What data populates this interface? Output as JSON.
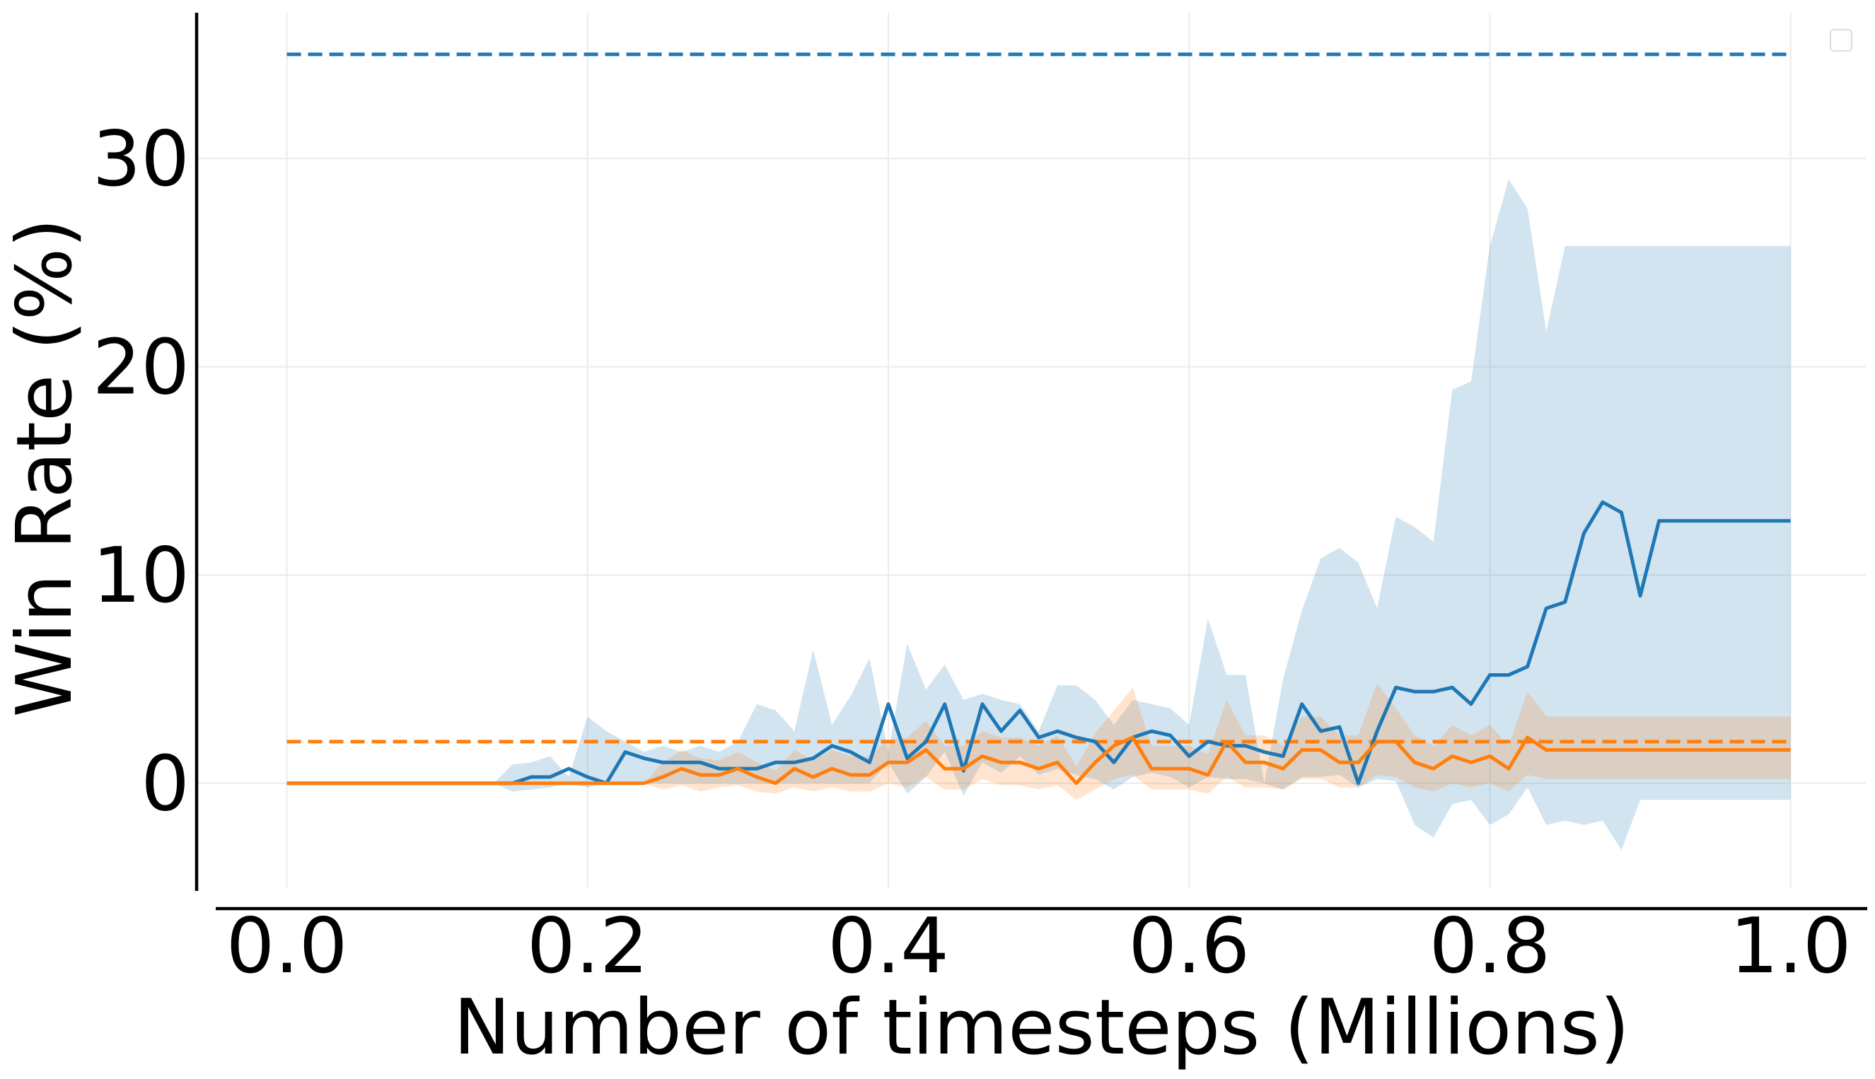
{
  "chart_data": {
    "type": "line",
    "title": "",
    "xlabel": "Number of timesteps (Millions)",
    "ylabel": "Win Rate (%)",
    "xlim": [
      -0.06,
      1.05
    ],
    "ylim": [
      -5,
      37
    ],
    "xticks": [
      0.0,
      0.2,
      0.4,
      0.6,
      0.8,
      1.0
    ],
    "xtick_labels": [
      "0.0",
      "0.2",
      "0.4",
      "0.6",
      "0.8",
      "1.0"
    ],
    "yticks": [
      0,
      10,
      20,
      30
    ],
    "ytick_labels": [
      "0",
      "10",
      "20",
      "30"
    ],
    "grid": true,
    "legend": {
      "placement": "top-right",
      "entries": []
    },
    "x": [
      0.0,
      0.0125,
      0.025,
      0.0375,
      0.05,
      0.0625,
      0.075,
      0.0875,
      0.1,
      0.1125,
      0.125,
      0.1375,
      0.15,
      0.1625,
      0.175,
      0.1875,
      0.2,
      0.2125,
      0.225,
      0.2375,
      0.25,
      0.2625,
      0.275,
      0.2875,
      0.3,
      0.3125,
      0.325,
      0.3375,
      0.35,
      0.3625,
      0.375,
      0.3875,
      0.4,
      0.4125,
      0.425,
      0.4375,
      0.45,
      0.4625,
      0.475,
      0.4875,
      0.5,
      0.5125,
      0.525,
      0.5375,
      0.55,
      0.5625,
      0.575,
      0.5875,
      0.6,
      0.6125,
      0.625,
      0.6375,
      0.65,
      0.6625,
      0.675,
      0.6875,
      0.7,
      0.7125,
      0.725,
      0.7375,
      0.75,
      0.7625,
      0.775,
      0.7875,
      0.8,
      0.8125,
      0.825,
      0.8375,
      0.85,
      0.8625,
      0.875,
      0.8875,
      0.9,
      0.9125,
      0.925,
      0.9375,
      0.95,
      0.9625,
      0.975,
      0.9875,
      1.0
    ],
    "series": [
      {
        "color": "#1f77b4",
        "band_color": "#1f77b4",
        "values": [
          0,
          0,
          0,
          0,
          0,
          0,
          0,
          0,
          0,
          0,
          0,
          0,
          0,
          0.3,
          0.3,
          0.7,
          0.3,
          0,
          1.5,
          1.2,
          1.0,
          1.0,
          1.0,
          0.7,
          0.7,
          0.7,
          1.0,
          1.0,
          1.2,
          1.8,
          1.5,
          1.0,
          3.8,
          1.2,
          2.0,
          3.8,
          0.6,
          3.8,
          2.5,
          3.5,
          2.2,
          2.5,
          2.2,
          2.0,
          1.0,
          2.2,
          2.5,
          2.3,
          1.3,
          2.0,
          1.8,
          1.8,
          1.5,
          1.3,
          3.8,
          2.5,
          2.7,
          0,
          2.5,
          4.6,
          4.4,
          4.4,
          4.6,
          3.8,
          5.2,
          5.2,
          5.6,
          8.4,
          8.7,
          12.0,
          13.5,
          13.0,
          9.0,
          12.6,
          12.6,
          12.6,
          12.6,
          12.6,
          12.6,
          12.6,
          12.6
        ],
        "lower": [
          0,
          0,
          0,
          0,
          0,
          0,
          0,
          0,
          0,
          0,
          0,
          0,
          -0.4,
          -0.3,
          -0.2,
          0,
          -0.2,
          0,
          0,
          0,
          0,
          0,
          0,
          0,
          0,
          0,
          0,
          0,
          0,
          0,
          0,
          0,
          1.0,
          -0.5,
          0.3,
          1.5,
          -0.6,
          1.0,
          0.5,
          1.3,
          0.4,
          0.7,
          0.4,
          0.2,
          -0.3,
          0.3,
          0.5,
          0.3,
          -0.2,
          0.3,
          0.2,
          0.2,
          0,
          -0.3,
          0.3,
          0.3,
          0.4,
          -0.2,
          0.2,
          0.1,
          -2.0,
          -2.6,
          -1.0,
          -0.8,
          -2.0,
          -1.5,
          -0.2,
          -2.0,
          -1.8,
          -2.0,
          -1.8,
          -3.2,
          -0.8,
          -0.8,
          -0.8,
          -0.8,
          -0.8,
          -0.8,
          -0.8,
          -0.8,
          -0.8
        ],
        "upper": [
          0,
          0,
          0,
          0,
          0,
          0,
          0,
          0,
          0,
          0,
          0,
          0,
          0.9,
          1.0,
          1.3,
          0.3,
          3.2,
          2.5,
          2.0,
          1.5,
          1.8,
          1.5,
          1.8,
          1.5,
          2.0,
          3.8,
          3.5,
          2.5,
          6.4,
          2.8,
          4.2,
          6.0,
          1.5,
          6.7,
          4.5,
          5.7,
          4.0,
          4.3,
          4.0,
          3.8,
          2.5,
          4.7,
          4.7,
          4.0,
          2.8,
          4.0,
          3.8,
          3.6,
          2.8,
          7.9,
          5.2,
          5.2,
          0,
          5.0,
          8.3,
          10.8,
          11.3,
          10.6,
          8.4,
          12.8,
          12.3,
          11.6,
          18.9,
          19.3,
          25.8,
          29.0,
          27.6,
          21.7,
          25.8,
          25.8,
          25.8,
          25.8,
          25.8,
          25.8,
          25.8,
          25.8,
          25.8,
          25.8,
          25.8,
          25.8,
          25.8
        ]
      },
      {
        "color": "#ff7f0e",
        "band_color": "#ff7f0e",
        "values": [
          0,
          0,
          0,
          0,
          0,
          0,
          0,
          0,
          0,
          0,
          0,
          0,
          0,
          0,
          0,
          0,
          0,
          0,
          0,
          0,
          0.3,
          0.7,
          0.4,
          0.4,
          0.7,
          0.3,
          0,
          0.7,
          0.3,
          0.7,
          0.4,
          0.4,
          1.0,
          1.0,
          1.6,
          0.7,
          0.7,
          1.3,
          1.0,
          1.0,
          0.7,
          1.0,
          0,
          1.0,
          1.8,
          2.2,
          0.7,
          0.7,
          0.7,
          0.4,
          2.0,
          1.0,
          1.0,
          0.7,
          1.6,
          1.6,
          1.0,
          1.0,
          2.0,
          2.0,
          1.0,
          0.7,
          1.3,
          1.0,
          1.3,
          0.7,
          2.2,
          1.6,
          1.6,
          1.6,
          1.6,
          1.6,
          1.6,
          1.6,
          1.6,
          1.6,
          1.6,
          1.6,
          1.6,
          1.6,
          1.6
        ],
        "lower": [
          0,
          0,
          0,
          0,
          0,
          0,
          0,
          0,
          0,
          0,
          0,
          0,
          0,
          0,
          0,
          0,
          0,
          0,
          0,
          0,
          -0.3,
          -0.1,
          -0.4,
          -0.2,
          -0.1,
          -0.4,
          -0.5,
          -0.2,
          -0.4,
          -0.2,
          -0.4,
          -0.4,
          0.0,
          -0.2,
          0.3,
          -0.3,
          -0.3,
          0.2,
          -0.1,
          -0.1,
          -0.3,
          -0.1,
          -0.8,
          -0.3,
          0.2,
          0.4,
          -0.3,
          -0.3,
          -0.3,
          -0.5,
          0.3,
          -0.2,
          -0.2,
          -0.3,
          0.2,
          0.2,
          -0.2,
          -0.2,
          0.4,
          0.3,
          -0.2,
          -0.4,
          0.0,
          -0.2,
          0.0,
          -0.4,
          0.4,
          0.2,
          0.2,
          0.2,
          0.2,
          0.2,
          0.2,
          0.2,
          0.2,
          0.2,
          0.2,
          0.2,
          0.2,
          0.2,
          0.2
        ],
        "upper": [
          0,
          0,
          0,
          0,
          0,
          0,
          0,
          0,
          0,
          0,
          0,
          0,
          0,
          0,
          0,
          0,
          0,
          0,
          0,
          0,
          1.0,
          1.6,
          1.2,
          1.1,
          1.5,
          1.0,
          0.6,
          1.6,
          1.1,
          1.6,
          1.3,
          1.3,
          2.1,
          2.2,
          3.0,
          1.8,
          1.8,
          2.5,
          2.2,
          2.2,
          1.8,
          2.3,
          0.8,
          2.4,
          3.5,
          4.6,
          1.8,
          1.8,
          1.8,
          1.4,
          4.0,
          2.3,
          2.3,
          1.8,
          3.2,
          3.2,
          2.3,
          2.3,
          4.8,
          3.6,
          2.3,
          1.8,
          2.8,
          2.3,
          2.8,
          1.8,
          4.4,
          3.2,
          3.2,
          3.2,
          3.2,
          3.2,
          3.2,
          3.2,
          3.2,
          3.2,
          3.2,
          3.2,
          3.2,
          3.2,
          3.2
        ]
      }
    ],
    "reference_lines": [
      {
        "y": 35,
        "color": "#1f77b4",
        "style": "dashed",
        "x_range": [
          0.0,
          1.0
        ]
      },
      {
        "y": 2,
        "color": "#ff7f0e",
        "style": "dashed",
        "x_range": [
          0.0,
          1.0
        ]
      }
    ]
  }
}
